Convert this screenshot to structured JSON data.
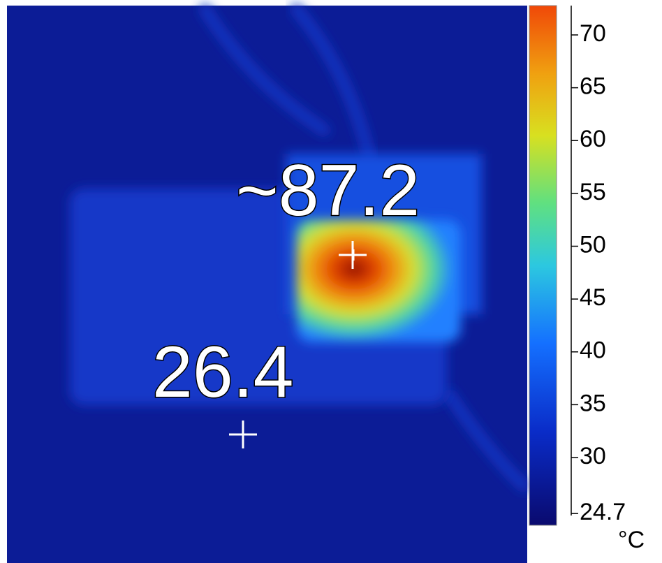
{
  "image": {
    "annotations": [
      {
        "label": "~87.2"
      },
      {
        "label": "26.4"
      }
    ]
  },
  "colorbar": {
    "ticks": [
      70,
      65,
      60,
      55,
      50,
      45,
      40,
      35,
      30
    ],
    "min_label": "24.7",
    "unit": "°C"
  }
}
